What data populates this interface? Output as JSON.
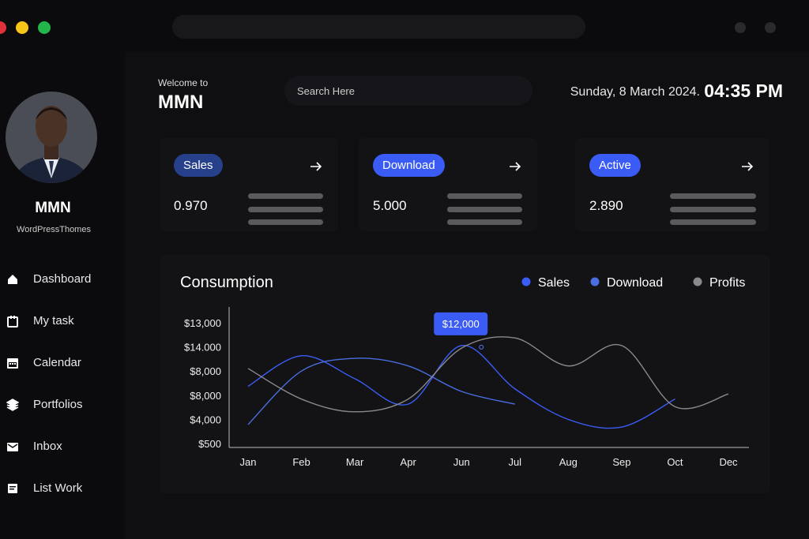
{
  "window": {
    "dot_colors": [
      "#e0323a",
      "#f5c518",
      "#22b54a"
    ]
  },
  "profile": {
    "name": "MMN",
    "subtitle": "WordPressThomes"
  },
  "nav": [
    "Dashboard",
    "My task",
    "Calendar",
    "Portfolios",
    "Inbox",
    "List Work"
  ],
  "header": {
    "welcome": "Welcome to",
    "brand": "MMN",
    "search_placeholder": "Search Here",
    "date": "Sunday, 8 March 2024.",
    "time": "04:35 PM"
  },
  "cards": [
    {
      "label": "Sales",
      "value": "0.970"
    },
    {
      "label": "Download",
      "value": "5.000"
    },
    {
      "label": "Active",
      "value": "2.890"
    }
  ],
  "chart_data": {
    "type": "line",
    "title": "Consumption",
    "categories": [
      "Jan",
      "Feb",
      "Mar",
      "Apr",
      "Jun",
      "Jul",
      "Aug",
      "Sep",
      "Oct",
      "Dec"
    ],
    "y_labels": [
      "$500",
      "$4,000",
      "$8,000",
      "$8,000",
      "$14.000",
      "$13,000"
    ],
    "ylim": [
      -0.2,
      5.5
    ],
    "series": [
      {
        "name": "Sales",
        "color": "#3a5cf5",
        "values": [
          2.2,
          3.4,
          2.5,
          1.5,
          3.8,
          2.1,
          0.9,
          0.6,
          1.7,
          null
        ]
      },
      {
        "name": "Download",
        "color": "#4a6ee0",
        "values": [
          0.7,
          2.8,
          3.3,
          3.0,
          2.0,
          1.5,
          null,
          null,
          null,
          null
        ]
      },
      {
        "name": "Profits",
        "color": "#8a8a8e",
        "values": [
          2.9,
          1.7,
          1.2,
          1.7,
          3.7,
          4.1,
          3.0,
          3.8,
          1.4,
          1.9
        ]
      }
    ],
    "annotation": "$12,000"
  }
}
